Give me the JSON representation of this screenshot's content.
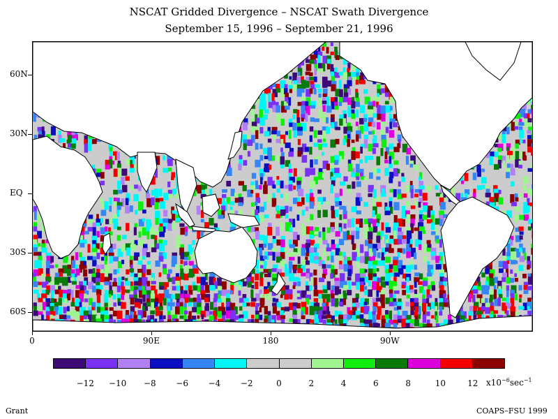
{
  "title": {
    "line1": "NSCAT Gridded Divergence – NSCAT Swath Divergence",
    "line2": "September 15, 1996 – September 21, 1996"
  },
  "map": {
    "lat_labels": [
      "60N",
      "30N",
      "EQ",
      "30S",
      "60S"
    ],
    "lat_values": [
      60,
      30,
      0,
      -30,
      -60
    ],
    "lon_labels": [
      "0",
      "90E",
      "180",
      "90W"
    ],
    "lon_values": [
      0,
      90,
      180,
      270
    ],
    "lon_range": [
      0,
      378
    ],
    "lat_range": [
      -70,
      77
    ]
  },
  "colorbar": {
    "colors": [
      "#3d0a78",
      "#7a30f5",
      "#b280f5",
      "#0a10c0",
      "#3585f5",
      "#00f5f5",
      "#cccccc",
      "#cccccc",
      "#a0f590",
      "#10ee10",
      "#087a08",
      "#dd00dd",
      "#f50000",
      "#8c0000"
    ],
    "tick_labels": [
      "−12",
      "−10",
      "−8",
      "−6",
      "−4",
      "−2",
      "0",
      "2",
      "4",
      "6",
      "8",
      "10",
      "12"
    ],
    "unit_prefix": "x10",
    "unit_exp": "−6",
    "unit_mid": "sec",
    "unit_exp2": "−1"
  },
  "footer": {
    "left": "Grant",
    "right": "COAPS–FSU 1999"
  }
}
